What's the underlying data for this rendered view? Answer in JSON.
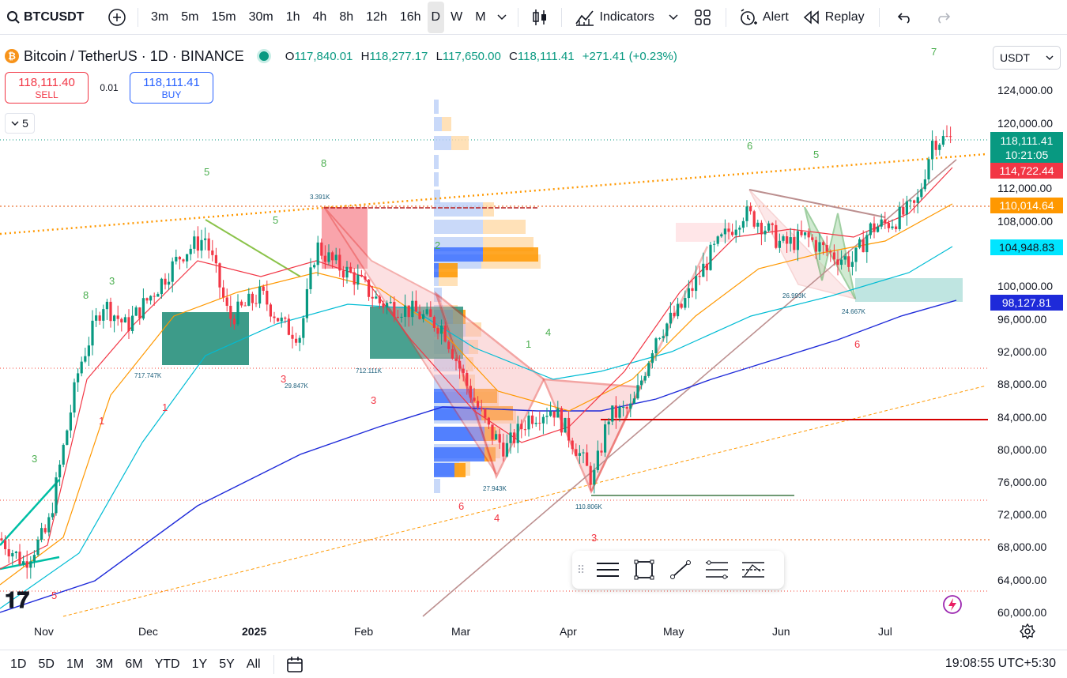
{
  "toolbar": {
    "symbol": "BTCUSDT",
    "intervals": [
      "3m",
      "5m",
      "15m",
      "30m",
      "1h",
      "4h",
      "8h",
      "12h",
      "16h",
      "D",
      "W",
      "M"
    ],
    "active_interval": "D",
    "indicators_label": "Indicators",
    "alert_label": "Alert",
    "replay_label": "Replay"
  },
  "legend": {
    "title": "Bitcoin / TetherUS · 1D · BINANCE",
    "open_key": "O",
    "open": "117,840.01",
    "high_key": "H",
    "high": "118,277.17",
    "low_key": "L",
    "low": "117,650.00",
    "close_key": "C",
    "close": "118,111.41",
    "change": "+271.41 (+0.23%)"
  },
  "trade": {
    "sell_price": "118,111.40",
    "sell_label": "SELL",
    "spread": "0.01",
    "buy_price": "118,111.41",
    "buy_label": "BUY"
  },
  "collapse_count": "5",
  "currency": "USDT",
  "price_axis": [
    "124,000.00",
    "120,000.00",
    "112,000.00",
    "108,000.00",
    "100,000.00",
    "96,000.00",
    "92,000.00",
    "88,000.00",
    "84,000.00",
    "80,000.00",
    "76,000.00",
    "72,000.00",
    "68,000.00",
    "64,000.00",
    "60,000.00"
  ],
  "price_labels": {
    "last": "118,111.41",
    "countdown": "10:21:05",
    "red": "114,722.44",
    "orange": "110,014.64",
    "cyan": "104,948.83",
    "blue": "98,127.81"
  },
  "time_axis": [
    "Nov",
    "Dec",
    "2025",
    "Feb",
    "Mar",
    "Apr",
    "May",
    "Jun",
    "Jul"
  ],
  "ranges": [
    "1D",
    "5D",
    "1M",
    "3M",
    "6M",
    "YTD",
    "1Y",
    "5Y",
    "All"
  ],
  "clock": "19:08:55 UTC+5:30",
  "chart_annotations": [
    "717.747K",
    "29.847K",
    "712.111K",
    "27.943K",
    "110.806K",
    "26.993K",
    "24.667K",
    "3.391K"
  ],
  "colors": {
    "up": "#089981",
    "down": "#f23645",
    "accent": "#2962ff",
    "orange": "#ff9800"
  },
  "chart_data": {
    "type": "line",
    "title": "Bitcoin / TetherUS · 1D · BINANCE",
    "x_categories": [
      "Nov",
      "Dec",
      "2025",
      "Feb",
      "Mar",
      "Apr",
      "May",
      "Jun",
      "Jul"
    ],
    "ylim": [
      60000,
      126000
    ],
    "series": [
      {
        "approx_close": [
          69000,
          96000,
          94000,
          102000,
          86000,
          83000,
          94000,
          105000,
          107000,
          118111
        ]
      }
    ]
  }
}
